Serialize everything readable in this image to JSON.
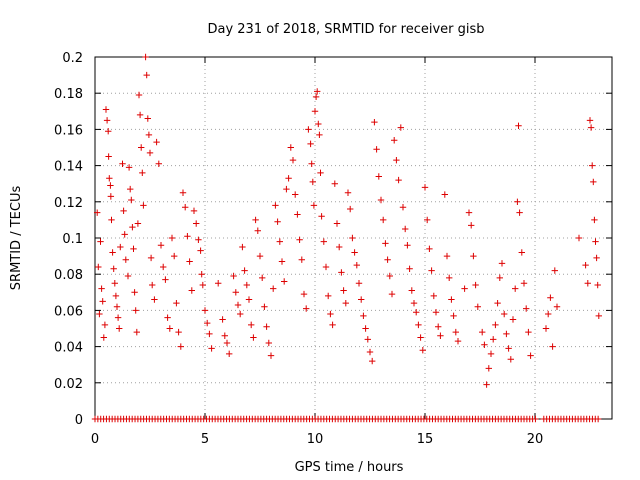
{
  "chart_data": {
    "type": "scatter",
    "title": "Day 231 of 2018, SRMTID for receiver gisb",
    "xlabel": "GPS time / hours",
    "ylabel": "SRMTID / TECUs",
    "xlim": [
      0,
      23.5
    ],
    "ylim": [
      0,
      0.2
    ],
    "x_ticks": [
      "0",
      "5",
      "10",
      "15",
      "20"
    ],
    "y_ticks": [
      "0",
      "0.02",
      "0.04",
      "0.06",
      "0.08",
      "0.1",
      "0.12",
      "0.14",
      "0.16",
      "0.18",
      "0.2"
    ],
    "grid": true,
    "legend": "none",
    "marker": "+",
    "color": "#dd0000",
    "series": [
      {
        "points": [
          [
            0.1,
            0.114
          ],
          [
            0.15,
            0.084
          ],
          [
            0.2,
            0.058
          ],
          [
            0.25,
            0.098
          ],
          [
            0.3,
            0.072
          ],
          [
            0.35,
            0.065
          ],
          [
            0.4,
            0.045
          ],
          [
            0.45,
            0.052
          ],
          [
            0.5,
            0.171
          ],
          [
            0.55,
            0.165
          ],
          [
            0.6,
            0.159
          ],
          [
            0.62,
            0.145
          ],
          [
            0.65,
            0.133
          ],
          [
            0.7,
            0.129
          ],
          [
            0.72,
            0.123
          ],
          [
            0.75,
            0.11
          ],
          [
            0.8,
            0.092
          ],
          [
            0.85,
            0.083
          ],
          [
            0.9,
            0.075
          ],
          [
            0.95,
            0.068
          ],
          [
            1.0,
            0.062
          ],
          [
            1.05,
            0.056
          ],
          [
            1.1,
            0.05
          ],
          [
            1.15,
            0.095
          ],
          [
            1.25,
            0.141
          ],
          [
            1.3,
            0.115
          ],
          [
            1.35,
            0.102
          ],
          [
            1.4,
            0.088
          ],
          [
            1.5,
            0.079
          ],
          [
            1.55,
            0.139
          ],
          [
            1.6,
            0.127
          ],
          [
            1.65,
            0.121
          ],
          [
            1.7,
            0.106
          ],
          [
            1.75,
            0.094
          ],
          [
            1.8,
            0.07
          ],
          [
            1.85,
            0.06
          ],
          [
            1.9,
            0.048
          ],
          [
            1.95,
            0.108
          ],
          [
            2.0,
            0.179
          ],
          [
            2.05,
            0.168
          ],
          [
            2.1,
            0.15
          ],
          [
            2.15,
            0.136
          ],
          [
            2.2,
            0.118
          ],
          [
            2.3,
            0.2
          ],
          [
            2.35,
            0.19
          ],
          [
            2.4,
            0.166
          ],
          [
            2.45,
            0.157
          ],
          [
            2.5,
            0.147
          ],
          [
            2.55,
            0.089
          ],
          [
            2.6,
            0.074
          ],
          [
            2.7,
            0.066
          ],
          [
            2.8,
            0.153
          ],
          [
            2.9,
            0.141
          ],
          [
            3.0,
            0.096
          ],
          [
            3.1,
            0.084
          ],
          [
            3.2,
            0.077
          ],
          [
            3.3,
            0.056
          ],
          [
            3.4,
            0.05
          ],
          [
            3.5,
            0.1
          ],
          [
            3.6,
            0.09
          ],
          [
            3.7,
            0.064
          ],
          [
            3.8,
            0.048
          ],
          [
            3.9,
            0.04
          ],
          [
            4.0,
            0.125
          ],
          [
            4.1,
            0.117
          ],
          [
            4.2,
            0.101
          ],
          [
            4.3,
            0.087
          ],
          [
            4.4,
            0.071
          ],
          [
            4.5,
            0.115
          ],
          [
            4.6,
            0.108
          ],
          [
            4.7,
            0.099
          ],
          [
            4.8,
            0.093
          ],
          [
            4.85,
            0.08
          ],
          [
            4.9,
            0.074
          ],
          [
            5.0,
            0.06
          ],
          [
            5.1,
            0.053
          ],
          [
            5.2,
            0.047
          ],
          [
            5.3,
            0.039
          ],
          [
            5.6,
            0.075
          ],
          [
            5.8,
            0.055
          ],
          [
            5.9,
            0.046
          ],
          [
            6.0,
            0.042
          ],
          [
            6.1,
            0.036
          ],
          [
            6.3,
            0.079
          ],
          [
            6.4,
            0.07
          ],
          [
            6.5,
            0.063
          ],
          [
            6.6,
            0.058
          ],
          [
            6.7,
            0.095
          ],
          [
            6.8,
            0.082
          ],
          [
            6.9,
            0.074
          ],
          [
            7.0,
            0.066
          ],
          [
            7.1,
            0.052
          ],
          [
            7.2,
            0.045
          ],
          [
            7.3,
            0.11
          ],
          [
            7.4,
            0.104
          ],
          [
            7.5,
            0.09
          ],
          [
            7.6,
            0.078
          ],
          [
            7.7,
            0.062
          ],
          [
            7.8,
            0.051
          ],
          [
            7.9,
            0.042
          ],
          [
            8.0,
            0.035
          ],
          [
            8.1,
            0.072
          ],
          [
            8.2,
            0.118
          ],
          [
            8.3,
            0.109
          ],
          [
            8.4,
            0.098
          ],
          [
            8.5,
            0.087
          ],
          [
            8.6,
            0.076
          ],
          [
            8.7,
            0.127
          ],
          [
            8.8,
            0.133
          ],
          [
            8.9,
            0.15
          ],
          [
            9.0,
            0.143
          ],
          [
            9.1,
            0.124
          ],
          [
            9.2,
            0.113
          ],
          [
            9.3,
            0.099
          ],
          [
            9.4,
            0.088
          ],
          [
            9.5,
            0.069
          ],
          [
            9.6,
            0.061
          ],
          [
            9.7,
            0.16
          ],
          [
            9.8,
            0.152
          ],
          [
            9.85,
            0.141
          ],
          [
            9.9,
            0.131
          ],
          [
            9.95,
            0.118
          ],
          [
            10.0,
            0.17
          ],
          [
            10.05,
            0.178
          ],
          [
            10.1,
            0.181
          ],
          [
            10.15,
            0.163
          ],
          [
            10.2,
            0.157
          ],
          [
            10.25,
            0.136
          ],
          [
            10.3,
            0.112
          ],
          [
            10.4,
            0.098
          ],
          [
            10.5,
            0.084
          ],
          [
            10.6,
            0.068
          ],
          [
            10.7,
            0.058
          ],
          [
            10.8,
            0.052
          ],
          [
            10.9,
            0.13
          ],
          [
            11.0,
            0.108
          ],
          [
            11.1,
            0.095
          ],
          [
            11.2,
            0.081
          ],
          [
            11.3,
            0.071
          ],
          [
            11.4,
            0.064
          ],
          [
            11.5,
            0.125
          ],
          [
            11.6,
            0.116
          ],
          [
            11.7,
            0.1
          ],
          [
            11.8,
            0.092
          ],
          [
            11.9,
            0.085
          ],
          [
            12.0,
            0.075
          ],
          [
            12.1,
            0.066
          ],
          [
            12.2,
            0.057
          ],
          [
            12.3,
            0.05
          ],
          [
            12.4,
            0.044
          ],
          [
            12.5,
            0.037
          ],
          [
            12.6,
            0.032
          ],
          [
            12.7,
            0.164
          ],
          [
            12.8,
            0.149
          ],
          [
            12.9,
            0.134
          ],
          [
            13.0,
            0.121
          ],
          [
            13.1,
            0.11
          ],
          [
            13.2,
            0.097
          ],
          [
            13.3,
            0.088
          ],
          [
            13.4,
            0.079
          ],
          [
            13.5,
            0.069
          ],
          [
            13.6,
            0.154
          ],
          [
            13.7,
            0.143
          ],
          [
            13.8,
            0.132
          ],
          [
            13.9,
            0.161
          ],
          [
            14.0,
            0.117
          ],
          [
            14.1,
            0.105
          ],
          [
            14.2,
            0.096
          ],
          [
            14.3,
            0.083
          ],
          [
            14.4,
            0.071
          ],
          [
            14.5,
            0.064
          ],
          [
            14.6,
            0.059
          ],
          [
            14.7,
            0.052
          ],
          [
            14.8,
            0.045
          ],
          [
            14.9,
            0.038
          ],
          [
            15.0,
            0.128
          ],
          [
            15.1,
            0.11
          ],
          [
            15.2,
            0.094
          ],
          [
            15.3,
            0.082
          ],
          [
            15.4,
            0.068
          ],
          [
            15.5,
            0.059
          ],
          [
            15.6,
            0.051
          ],
          [
            15.7,
            0.046
          ],
          [
            15.9,
            0.124
          ],
          [
            16.0,
            0.09
          ],
          [
            16.1,
            0.078
          ],
          [
            16.2,
            0.066
          ],
          [
            16.3,
            0.057
          ],
          [
            16.4,
            0.048
          ],
          [
            16.5,
            0.043
          ],
          [
            16.8,
            0.072
          ],
          [
            17.0,
            0.114
          ],
          [
            17.1,
            0.107
          ],
          [
            17.2,
            0.09
          ],
          [
            17.3,
            0.074
          ],
          [
            17.4,
            0.062
          ],
          [
            17.6,
            0.048
          ],
          [
            17.7,
            0.041
          ],
          [
            17.8,
            0.019
          ],
          [
            17.9,
            0.028
          ],
          [
            18.0,
            0.036
          ],
          [
            18.1,
            0.044
          ],
          [
            18.2,
            0.052
          ],
          [
            18.3,
            0.064
          ],
          [
            18.4,
            0.078
          ],
          [
            18.5,
            0.086
          ],
          [
            18.6,
            0.058
          ],
          [
            18.7,
            0.047
          ],
          [
            18.8,
            0.039
          ],
          [
            18.9,
            0.033
          ],
          [
            19.0,
            0.055
          ],
          [
            19.1,
            0.072
          ],
          [
            19.2,
            0.12
          ],
          [
            19.25,
            0.162
          ],
          [
            19.3,
            0.114
          ],
          [
            19.4,
            0.092
          ],
          [
            19.5,
            0.075
          ],
          [
            19.6,
            0.061
          ],
          [
            19.7,
            0.048
          ],
          [
            19.8,
            0.035
          ],
          [
            20.5,
            0.05
          ],
          [
            20.6,
            0.058
          ],
          [
            20.7,
            0.067
          ],
          [
            20.8,
            0.04
          ],
          [
            20.9,
            0.082
          ],
          [
            21.0,
            0.062
          ],
          [
            22.0,
            0.1
          ],
          [
            22.3,
            0.085
          ],
          [
            22.4,
            0.075
          ],
          [
            22.5,
            0.165
          ],
          [
            22.55,
            0.161
          ],
          [
            22.6,
            0.14
          ],
          [
            22.65,
            0.131
          ],
          [
            22.7,
            0.11
          ],
          [
            22.75,
            0.098
          ],
          [
            22.8,
            0.089
          ],
          [
            22.85,
            0.074
          ],
          [
            22.9,
            0.057
          ]
        ]
      }
    ],
    "zero_band": {
      "y": 0,
      "x_ranges": [
        [
          0.0,
          20.1
        ],
        [
          20.4,
          22.9
        ]
      ],
      "step": 0.13
    }
  }
}
